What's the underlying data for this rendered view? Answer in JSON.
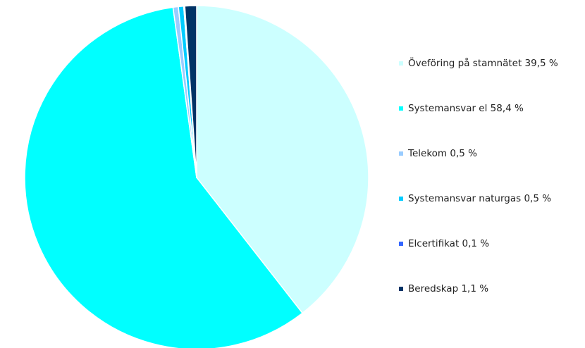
{
  "chart_data": {
    "type": "pie",
    "slices": [
      {
        "label": "Öveföring på stamnätet 39,5 %",
        "value": 39.5,
        "color": "#ccffff"
      },
      {
        "label": "Systemansvar el 58,4 %",
        "value": 58.4,
        "color": "#00ffff"
      },
      {
        "label": "Telekom 0,5 %",
        "value": 0.5,
        "color": "#99ccff"
      },
      {
        "label": "Systemansvar naturgas 0,5 %",
        "value": 0.5,
        "color": "#00ccff"
      },
      {
        "label": "Elcertifikat 0,1 %",
        "value": 0.1,
        "color": "#3366ff"
      },
      {
        "label": "Beredskap 1,1 %",
        "value": 1.1,
        "color": "#003366"
      }
    ],
    "legend_position": "right"
  }
}
